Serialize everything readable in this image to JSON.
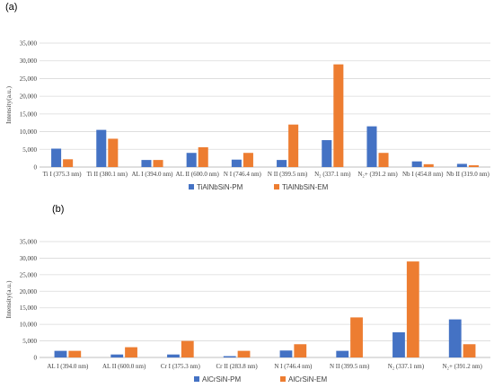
{
  "colors": {
    "pm": "#4472C4",
    "em": "#ED7D31",
    "grid": "#D9D9D9",
    "axis": "#BFBFBF"
  },
  "chart_data": [
    {
      "panel_label": "(a)",
      "type": "bar",
      "ylabel": "Intensity(a.u.)",
      "ylim": [
        0,
        35000
      ],
      "yticks": [
        "0",
        "5,000",
        "10,000",
        "15,000",
        "20,000",
        "25,000",
        "30,000",
        "35,000"
      ],
      "grid": true,
      "legend_position": "bottom",
      "categories": [
        "Ti I (375.3 nm)",
        "Ti II (380.1 nm)",
        "AL I (394.0 nm)",
        "AL II (600.0 nm)",
        "N I (746.4 nm)",
        "N II (399.5 nm)",
        "N₂ (337.1 nm)",
        "N₂+ (391.2 nm)",
        "Nb I (454.8 nm)",
        "Nb II (319.0 nm)"
      ],
      "series": [
        {
          "name": "TiAlNbSiN-PM",
          "values": [
            5200,
            10500,
            2000,
            4000,
            2100,
            2000,
            7600,
            11500,
            1600,
            900
          ]
        },
        {
          "name": "TiAlNbSiN-EM",
          "values": [
            2200,
            8000,
            2000,
            5600,
            4000,
            12000,
            29000,
            4000,
            800,
            500
          ]
        }
      ]
    },
    {
      "panel_label": "(b)",
      "type": "bar",
      "ylabel": "Intensity(a.u.)",
      "ylim": [
        0,
        35000
      ],
      "yticks": [
        "0",
        "5,000",
        "10,000",
        "15,000",
        "20,000",
        "25,000",
        "30,000",
        "35,000"
      ],
      "grid": true,
      "legend_position": "bottom",
      "categories": [
        "AL I (394.0 nm)",
        "AL II (600.0 nm)",
        "Cr I (375.3 nm)",
        "Cr II (283.8 nm)",
        "N I (746.4 nm)",
        "N II (399.5 nm)",
        "N₂ (337.1 nm)",
        "N₂+ (391.2 nm)"
      ],
      "series": [
        {
          "name": "AlCrSiN-PM",
          "values": [
            2000,
            900,
            900,
            400,
            2100,
            2000,
            7600,
            11500
          ]
        },
        {
          "name": "AlCrSiN-EM",
          "values": [
            2000,
            3100,
            5000,
            2000,
            4000,
            12100,
            29000,
            4000
          ]
        }
      ]
    }
  ]
}
